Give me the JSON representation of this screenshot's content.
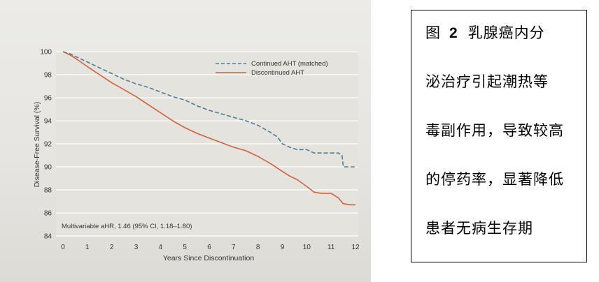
{
  "caption": {
    "figure_label": "图",
    "figure_number": "2",
    "line1_text": "乳腺癌内分",
    "line2": "泌治疗引起潮热等",
    "line3": "毒副作用，导致较高",
    "line4": "的停药率，显著降低",
    "line5": "患者无病生存期"
  },
  "chart_data": {
    "type": "line",
    "xlabel": "Years Since Discontinuation",
    "ylabel": "Disease-Free Survival (%)",
    "xlim": [
      0,
      12
    ],
    "ylim": [
      84,
      100
    ],
    "x_ticks": [
      0,
      1,
      2,
      3,
      4,
      5,
      6,
      7,
      8,
      9,
      10,
      11,
      12
    ],
    "y_ticks": [
      84,
      86,
      88,
      90,
      92,
      94,
      96,
      98,
      100
    ],
    "grid": "horizontal",
    "legend_position": "top-right",
    "annotation": "Multivariable aHR, 1.46 (95% CI, 1.18–1.80)",
    "series": [
      {
        "name": "Continued AHT (matched)",
        "color": "#4a7f95",
        "style": "dashed",
        "x": [
          0,
          0.3,
          0.6,
          1.0,
          1.5,
          2.0,
          2.5,
          3.0,
          3.5,
          4.0,
          4.5,
          5.0,
          5.5,
          6.0,
          6.5,
          7.0,
          7.5,
          8.0,
          8.5,
          8.8,
          9.0,
          9.3,
          9.6,
          10.0,
          10.3,
          10.6,
          11.0,
          11.3,
          11.45,
          11.5,
          12.0
        ],
        "y": [
          100,
          99.8,
          99.5,
          99.1,
          98.6,
          98.1,
          97.6,
          97.2,
          96.9,
          96.5,
          96.1,
          95.8,
          95.3,
          94.9,
          94.6,
          94.3,
          94.0,
          93.6,
          93.0,
          92.6,
          92.0,
          91.7,
          91.5,
          91.5,
          91.2,
          91.2,
          91.2,
          91.2,
          91.0,
          90.0,
          90.0
        ]
      },
      {
        "name": "Discontinued AHT",
        "color": "#d0623a",
        "style": "solid",
        "x": [
          0,
          0.3,
          0.6,
          1.0,
          1.5,
          2.0,
          2.5,
          3.0,
          3.5,
          4.0,
          4.5,
          5.0,
          5.5,
          6.0,
          6.5,
          7.0,
          7.5,
          8.0,
          8.5,
          9.0,
          9.3,
          9.6,
          10.0,
          10.3,
          10.6,
          11.0,
          11.3,
          11.5,
          11.8,
          12.0
        ],
        "y": [
          100,
          99.7,
          99.3,
          98.7,
          98.0,
          97.3,
          96.7,
          96.1,
          95.4,
          94.7,
          94.0,
          93.4,
          92.9,
          92.5,
          92.1,
          91.7,
          91.4,
          90.9,
          90.3,
          89.6,
          89.2,
          88.9,
          88.3,
          87.8,
          87.7,
          87.7,
          87.3,
          86.8,
          86.7,
          86.7
        ]
      }
    ]
  },
  "colors": {
    "plot_background": "#e4e3de",
    "gridline": "#ffffff",
    "axis_text": "#333333",
    "caption_border": "#000000"
  }
}
